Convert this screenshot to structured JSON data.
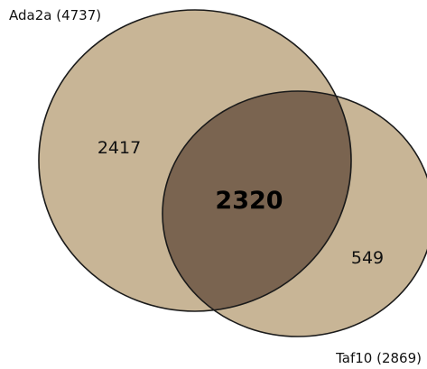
{
  "colors": {
    "set_fill": "#c8b596",
    "overlap_fill": "#7a6450",
    "outline": "#1a1a1a"
  },
  "sets": [
    {
      "label": "Ada2a (4737)"
    },
    {
      "label": "Taf10 (2869)"
    }
  ],
  "regions": {
    "ada2a_only": "2417",
    "overlap": "2320",
    "taf10_only": "549"
  }
}
